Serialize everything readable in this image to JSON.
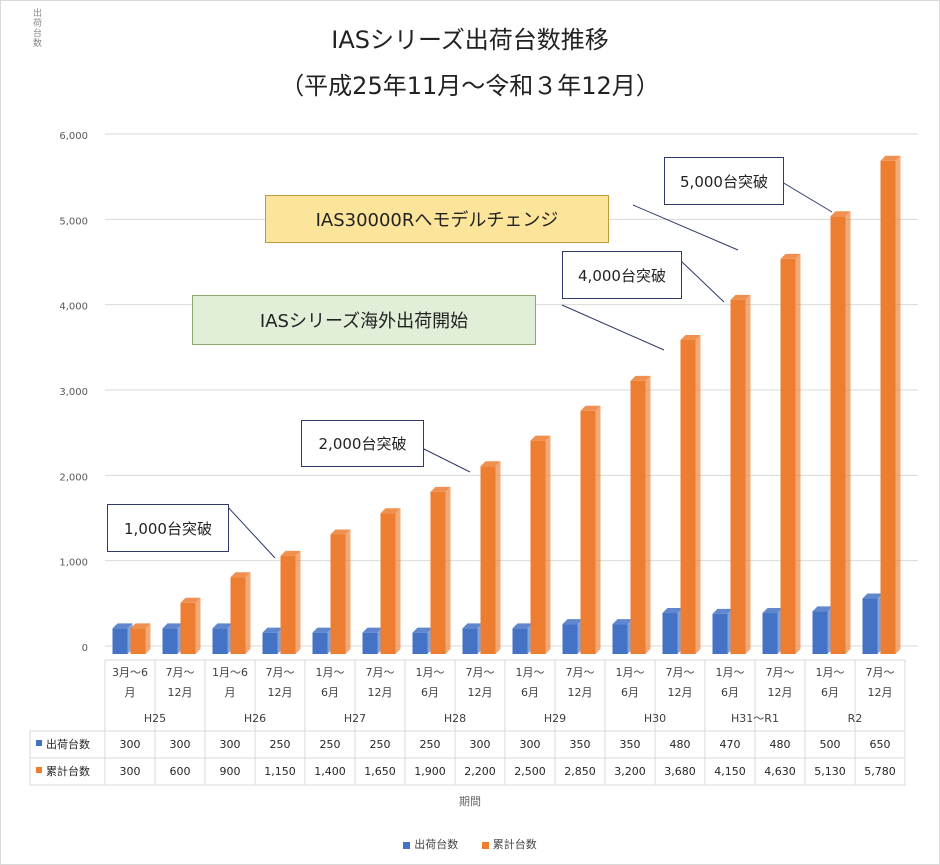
{
  "vertical_label": "出荷台数",
  "title_line1": "IASシリーズ出荷台数推移",
  "title_line2": "（平成25年11月～令和３年12月）",
  "x_axis_label": "期間",
  "colors": {
    "shipments": "#4472c4",
    "cumulative": "#ed7d31"
  },
  "callouts": {
    "c1000": "1,000台突破",
    "c2000": "2,000台突破",
    "c4000": "4,000台突破",
    "c5000": "5,000台突破",
    "model_change": "IAS30000Rへモデルチェンジ",
    "overseas": "IASシリーズ海外出荷開始"
  },
  "chart_data": {
    "type": "bar",
    "title": "IASシリーズ出荷台数推移（平成25年11月～令和３年12月）",
    "xlabel": "期間",
    "ylabel": "出荷台数",
    "ylim": [
      0,
      6000
    ],
    "yticks": [
      "0",
      "1,000",
      "2,000",
      "3,000",
      "4,000",
      "5,000",
      "6,000"
    ],
    "ytick_values": [
      0,
      1000,
      2000,
      3000,
      4000,
      5000,
      6000
    ],
    "categories_line1": [
      "3月～6",
      "7月～",
      "1月～6",
      "7月～",
      "1月～",
      "7月～",
      "1月～",
      "7月～",
      "1月～",
      "7月～",
      "1月～",
      "7月～",
      "1月～",
      "7月～",
      "1月～",
      "7月～"
    ],
    "categories_line2": [
      "月",
      "12月",
      "月",
      "12月",
      "6月",
      "12月",
      "6月",
      "12月",
      "6月",
      "12月",
      "6月",
      "12月",
      "6月",
      "12月",
      "6月",
      "12月"
    ],
    "groups": [
      "H25",
      "H26",
      "H27",
      "H28",
      "H29",
      "H30",
      "H31～R1",
      "R2"
    ],
    "series": [
      {
        "name": "出荷台数",
        "values": [
          300,
          300,
          300,
          250,
          250,
          250,
          250,
          300,
          300,
          350,
          350,
          480,
          470,
          480,
          500,
          650
        ],
        "labels": [
          "300",
          "300",
          "300",
          "250",
          "250",
          "250",
          "250",
          "300",
          "300",
          "350",
          "350",
          "480",
          "470",
          "480",
          "500",
          "650"
        ]
      },
      {
        "name": "累計台数",
        "values": [
          300,
          600,
          900,
          1150,
          1400,
          1650,
          1900,
          2200,
          2500,
          2850,
          3200,
          3680,
          4150,
          4630,
          5130,
          5780
        ],
        "labels": [
          "300",
          "600",
          "900",
          "1,150",
          "1,400",
          "1,650",
          "1,900",
          "2,200",
          "2,500",
          "2,850",
          "3,200",
          "3,680",
          "4,150",
          "4,630",
          "5,130",
          "5,780"
        ]
      }
    ]
  }
}
